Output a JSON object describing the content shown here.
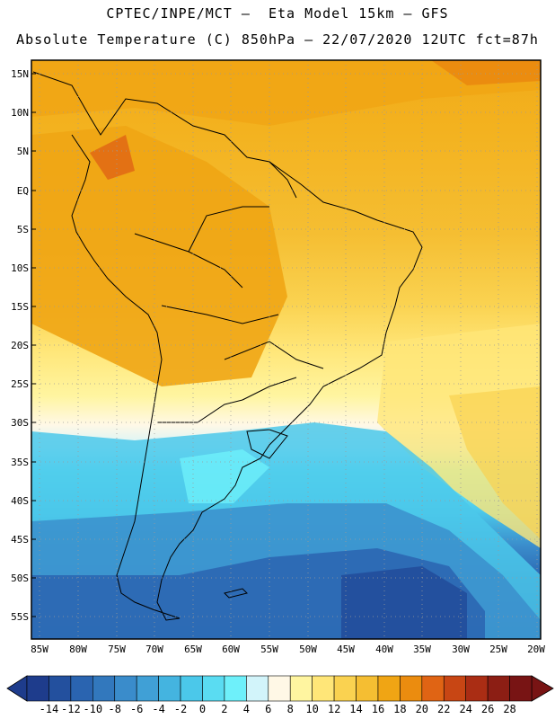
{
  "title": {
    "line1": "CPTEC/INPE/MCT –  Eta Model 15km – GFS",
    "line2": "Absolute Temperature (C) 850hPa – 22/07/2020 12UTC fct=87h"
  },
  "map": {
    "lat_labels": [
      "15N",
      "10N",
      "5N",
      "EQ",
      "5S",
      "10S",
      "15S",
      "20S",
      "25S",
      "30S",
      "35S",
      "40S",
      "45S",
      "50S",
      "55S"
    ],
    "lon_labels": [
      "85W",
      "80W",
      "75W",
      "70W",
      "65W",
      "60W",
      "55W",
      "50W",
      "45W",
      "40W",
      "35W",
      "30W",
      "25W",
      "20W"
    ],
    "region": "South America"
  },
  "colorbar": {
    "labels": [
      "-14",
      "-12",
      "-10",
      "-8",
      "-6",
      "-4",
      "-2",
      "0",
      "2",
      "4",
      "6",
      "8",
      "10",
      "12",
      "14",
      "16",
      "18",
      "20",
      "22",
      "24",
      "26",
      "28"
    ],
    "colors": [
      "#1e3c8c",
      "#23509e",
      "#2a64b0",
      "#3278bd",
      "#3a8ccb",
      "#40a0d6",
      "#44b4e0",
      "#4bc8ea",
      "#5adcf2",
      "#6ef0fa",
      "#d2f4fa",
      "#fff8e6",
      "#fff5a0",
      "#ffe678",
      "#fad250",
      "#f5be32",
      "#f0a514",
      "#eb8c0f",
      "#e06414",
      "#c84614",
      "#aa2d14",
      "#8c1e14",
      "#781414"
    ]
  }
}
